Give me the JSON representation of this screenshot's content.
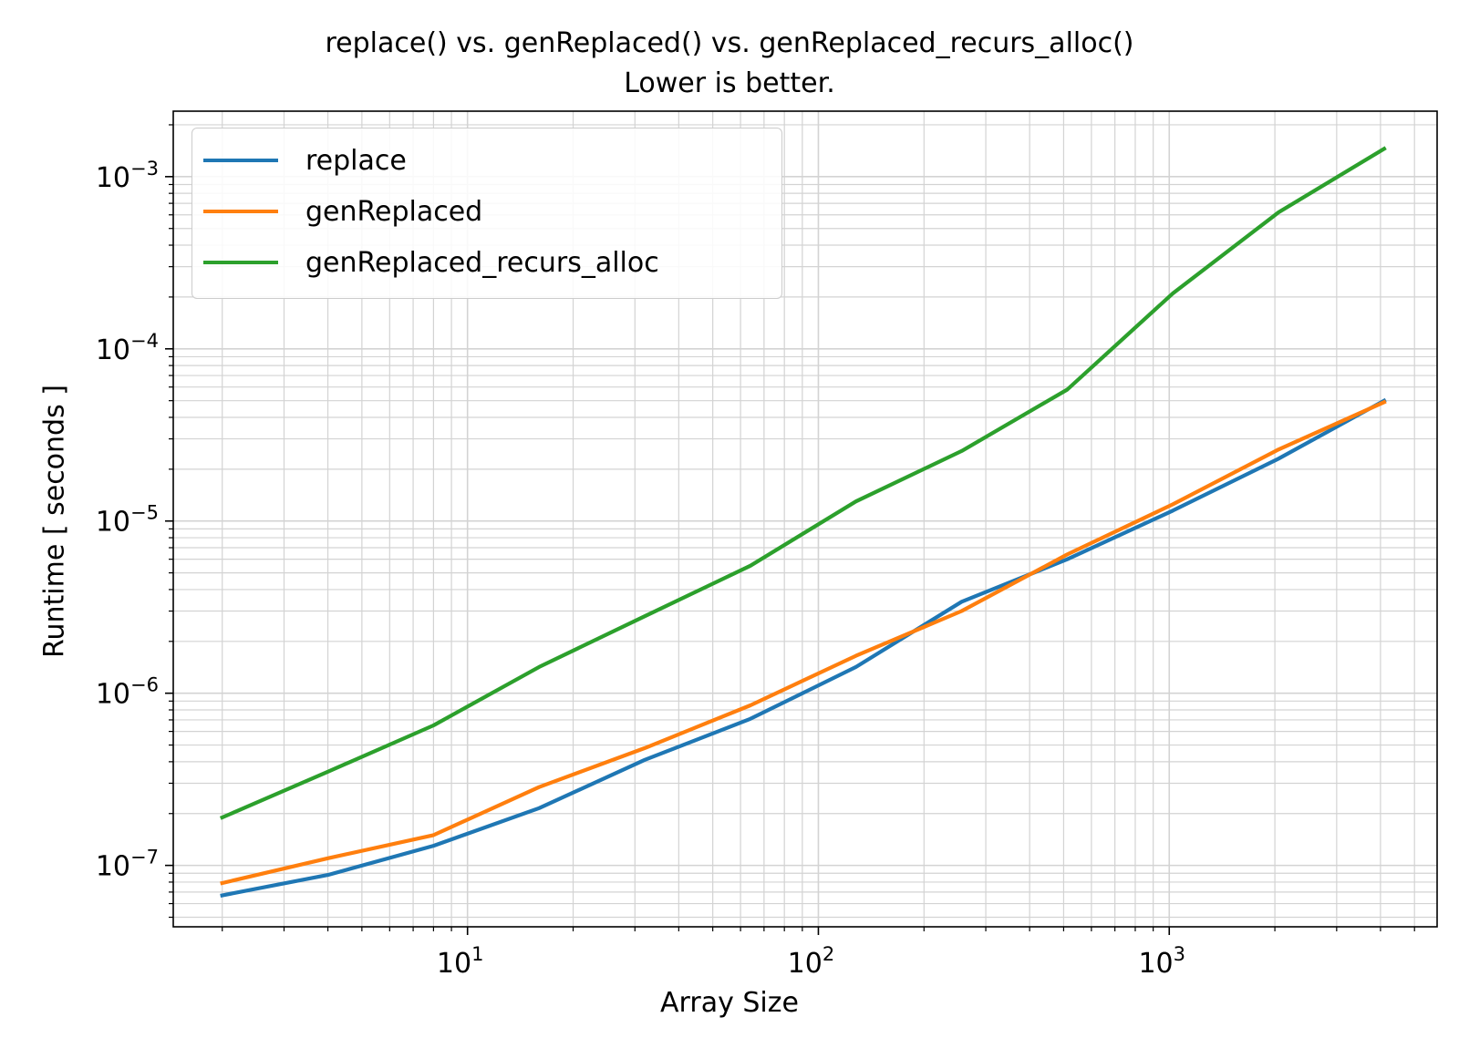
{
  "title": {
    "line1": "replace() vs. genReplaced() vs. genReplaced_recurs_alloc()",
    "line2": "Lower is better."
  },
  "chart_data": {
    "type": "line",
    "xscale": "log",
    "yscale": "log",
    "xlabel": "Array Size",
    "ylabel": "Runtime [ seconds ]",
    "xlim": [
      1.45,
      5800
    ],
    "ylim": [
      4.4e-08,
      0.0024
    ],
    "grid": true,
    "legend_position": "top-left",
    "x_ticks": [
      {
        "value": 10,
        "base": "10",
        "exp": "1"
      },
      {
        "value": 100,
        "base": "10",
        "exp": "2"
      },
      {
        "value": 1000,
        "base": "10",
        "exp": "3"
      }
    ],
    "y_ticks": [
      {
        "value": 1e-07,
        "base": "10",
        "exp": "−7"
      },
      {
        "value": 1e-06,
        "base": "10",
        "exp": "−6"
      },
      {
        "value": 1e-05,
        "base": "10",
        "exp": "−5"
      },
      {
        "value": 0.0001,
        "base": "10",
        "exp": "−4"
      },
      {
        "value": 0.001,
        "base": "10",
        "exp": "−3"
      }
    ],
    "x": [
      2,
      4,
      8,
      16,
      32,
      64,
      128,
      256,
      512,
      1024,
      2048,
      4096
    ],
    "series": [
      {
        "name": "replace",
        "color": "#1f77b4",
        "values": [
          6.7e-08,
          8.8e-08,
          1.3e-07,
          2.15e-07,
          4.1e-07,
          7.1e-07,
          1.42e-06,
          3.4e-06,
          6e-06,
          1.15e-05,
          2.3e-05,
          5e-05
        ]
      },
      {
        "name": "genReplaced",
        "color": "#ff7f0e",
        "values": [
          7.9e-08,
          1.1e-07,
          1.5e-07,
          2.85e-07,
          4.8e-07,
          8.5e-07,
          1.65e-06,
          3e-06,
          6.4e-06,
          1.25e-05,
          2.6e-05,
          4.9e-05
        ]
      },
      {
        "name": "genReplaced_recurs_alloc",
        "color": "#2ca02c",
        "values": [
          1.9e-07,
          3.5e-07,
          6.5e-07,
          1.42e-06,
          2.8e-06,
          5.5e-06,
          1.3e-05,
          2.55e-05,
          5.8e-05,
          0.00021,
          0.00062,
          0.00145
        ]
      }
    ]
  }
}
